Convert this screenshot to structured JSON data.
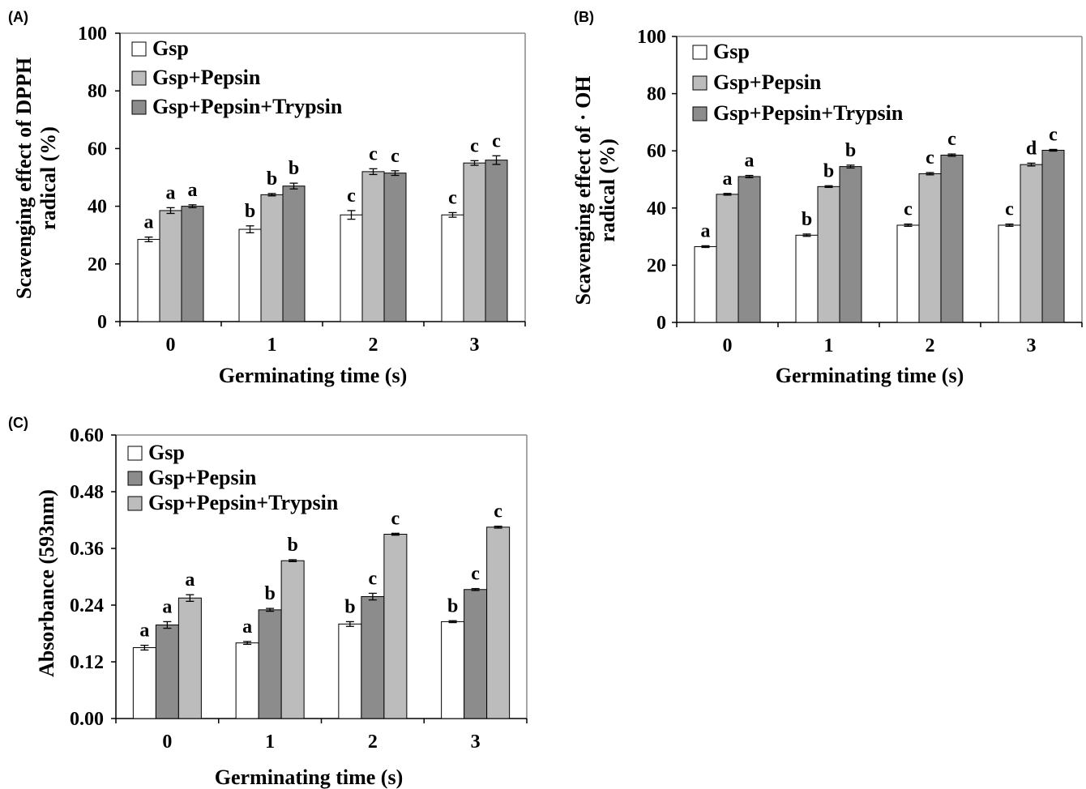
{
  "colors": {
    "white_bar": "#ffffff",
    "light_gray_bar": "#bcbcbc",
    "dark_gray_bar": "#8c8c8c",
    "stroke": "#000000",
    "frame": "#888888"
  },
  "chart_data": [
    {
      "type": "bar",
      "panel_label": "(A)",
      "categories": [
        "0",
        "1",
        "2",
        "3"
      ],
      "xlabel": "Germinating time (s)",
      "ylabel_lines": [
        "Scavenging effect of DPPH",
        "radical (%)"
      ],
      "ylim": [
        0,
        100
      ],
      "yticks": [
        "0",
        "20",
        "40",
        "60",
        "80",
        "100"
      ],
      "legend_position": "top-left",
      "series": [
        {
          "name": "Gsp",
          "color": "#ffffff",
          "values": [
            28.5,
            32,
            37,
            37
          ],
          "errors": [
            0.8,
            1.2,
            1.5,
            0.8
          ],
          "letters": [
            "a",
            "b",
            "c",
            "c"
          ]
        },
        {
          "name": "Gsp+Pepsin",
          "color": "#bcbcbc",
          "values": [
            38.5,
            44,
            52,
            55
          ],
          "errors": [
            1,
            0.4,
            1,
            0.8
          ],
          "letters": [
            "a",
            "b",
            "c",
            "c"
          ]
        },
        {
          "name": "Gsp+Pepsin+Trypsin",
          "color": "#8c8c8c",
          "values": [
            40,
            47,
            51.5,
            56
          ],
          "errors": [
            0.5,
            1,
            0.8,
            1.5
          ],
          "letters": [
            "a",
            "b",
            "c",
            "c"
          ]
        }
      ]
    },
    {
      "type": "bar",
      "panel_label": "(B)",
      "categories": [
        "0",
        "1",
        "2",
        "3"
      ],
      "xlabel": "Germinating time (s)",
      "ylabel_lines": [
        "Scavenging effect of · OH",
        "radical (%)"
      ],
      "ylim": [
        0,
        100
      ],
      "yticks": [
        "0",
        "20",
        "40",
        "60",
        "80",
        "100"
      ],
      "legend_position": "top-left",
      "series": [
        {
          "name": "Gsp",
          "color": "#ffffff",
          "values": [
            26.5,
            30.5,
            34,
            34
          ],
          "errors": [
            0.3,
            0.4,
            0.4,
            0.4
          ],
          "letters": [
            "a",
            "b",
            "c",
            "c"
          ]
        },
        {
          "name": "Gsp+Pepsin",
          "color": "#bcbcbc",
          "values": [
            44.8,
            47.5,
            52,
            55.2
          ],
          "errors": [
            0.3,
            0.3,
            0.4,
            0.5
          ],
          "letters": [
            "a",
            "b",
            "c",
            "d"
          ]
        },
        {
          "name": "Gsp+Pepsin+Trypsin",
          "color": "#8c8c8c",
          "values": [
            51,
            54.5,
            58.5,
            60.2
          ],
          "errors": [
            0.4,
            0.5,
            0.4,
            0.3
          ],
          "letters": [
            "a",
            "b",
            "c",
            "c"
          ]
        }
      ]
    },
    {
      "type": "bar",
      "panel_label": "(C)",
      "categories": [
        "0",
        "1",
        "2",
        "3"
      ],
      "xlabel": "Germinating time (s)",
      "ylabel_lines": [
        "Absorbance (593nm)"
      ],
      "ylim": [
        0,
        0.6
      ],
      "yticks": [
        "0.00",
        "0.12",
        "0.24",
        "0.36",
        "0.48",
        "0.60"
      ],
      "legend_position": "top-left",
      "series": [
        {
          "name": "Gsp",
          "color": "#ffffff",
          "values": [
            0.15,
            0.16,
            0.2,
            0.205
          ],
          "errors": [
            0.005,
            0.003,
            0.005,
            0.002
          ],
          "letters": [
            "a",
            "a",
            "b",
            "b"
          ]
        },
        {
          "name": "Gsp+Pepsin",
          "color": "#8c8c8c",
          "values": [
            0.198,
            0.23,
            0.258,
            0.273
          ],
          "errors": [
            0.007,
            0.003,
            0.007,
            0.002
          ],
          "letters": [
            "a",
            "b",
            "c",
            "c"
          ]
        },
        {
          "name": "Gsp+Pepsin+Trypsin",
          "color": "#bcbcbc",
          "values": [
            0.255,
            0.334,
            0.39,
            0.405
          ],
          "errors": [
            0.007,
            0.002,
            0.002,
            0.002
          ],
          "letters": [
            "a",
            "b",
            "c",
            "c"
          ]
        }
      ]
    }
  ]
}
